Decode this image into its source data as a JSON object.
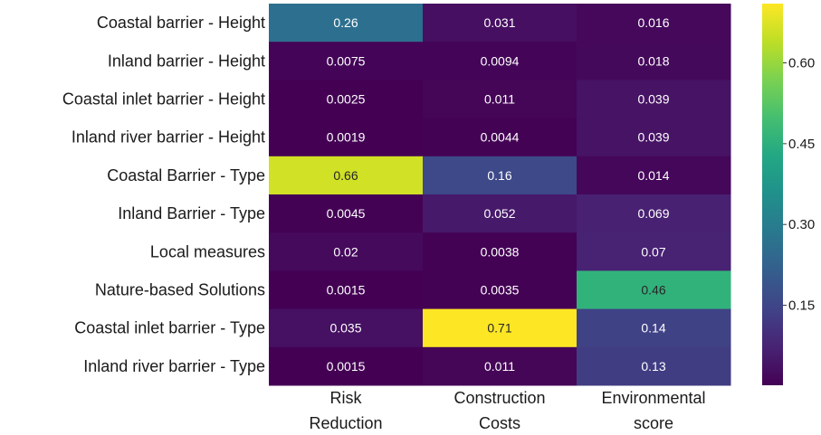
{
  "chart_data": {
    "type": "heatmap",
    "rows": [
      "Coastal barrier - Height",
      "Inland barrier - Height",
      "Coastal inlet barrier - Height",
      "Inland river barrier - Height",
      "Coastal Barrier - Type",
      "Inland Barrier - Type",
      "Local measures",
      "Nature-based Solutions",
      "Coastal inlet barrier - Type",
      "Inland river barrier - Type"
    ],
    "columns": [
      [
        "Risk",
        "Reduction"
      ],
      [
        "Construction",
        "Costs"
      ],
      [
        "Environmental",
        "score"
      ]
    ],
    "values": [
      [
        0.26,
        0.031,
        0.016
      ],
      [
        0.0075,
        0.0094,
        0.018
      ],
      [
        0.0025,
        0.011,
        0.039
      ],
      [
        0.0019,
        0.0044,
        0.039
      ],
      [
        0.66,
        0.16,
        0.014
      ],
      [
        0.0045,
        0.052,
        0.069
      ],
      [
        0.02,
        0.0038,
        0.07
      ],
      [
        0.0015,
        0.0035,
        0.46
      ],
      [
        0.035,
        0.71,
        0.14
      ],
      [
        0.0015,
        0.011,
        0.13
      ]
    ],
    "labels": [
      [
        "0.26",
        "0.031",
        "0.016"
      ],
      [
        "0.0075",
        "0.0094",
        "0.018"
      ],
      [
        "0.0025",
        "0.011",
        "0.039"
      ],
      [
        "0.0019",
        "0.0044",
        "0.039"
      ],
      [
        "0.66",
        "0.16",
        "0.014"
      ],
      [
        "0.0045",
        "0.052",
        "0.069"
      ],
      [
        "0.02",
        "0.0038",
        "0.07"
      ],
      [
        "0.0015",
        "0.0035",
        "0.46"
      ],
      [
        "0.035",
        "0.71",
        "0.14"
      ],
      [
        "0.0015",
        "0.011",
        "0.13"
      ]
    ],
    "colormap": "viridis",
    "vmin": 0.0015,
    "vmax": 0.71,
    "colorbar_ticks": [
      0.15,
      0.3,
      0.45,
      0.6
    ],
    "colorbar_tick_labels": [
      "0.15",
      "0.30",
      "0.45",
      "0.60"
    ],
    "colorbar_position": "right",
    "grid": false
  }
}
